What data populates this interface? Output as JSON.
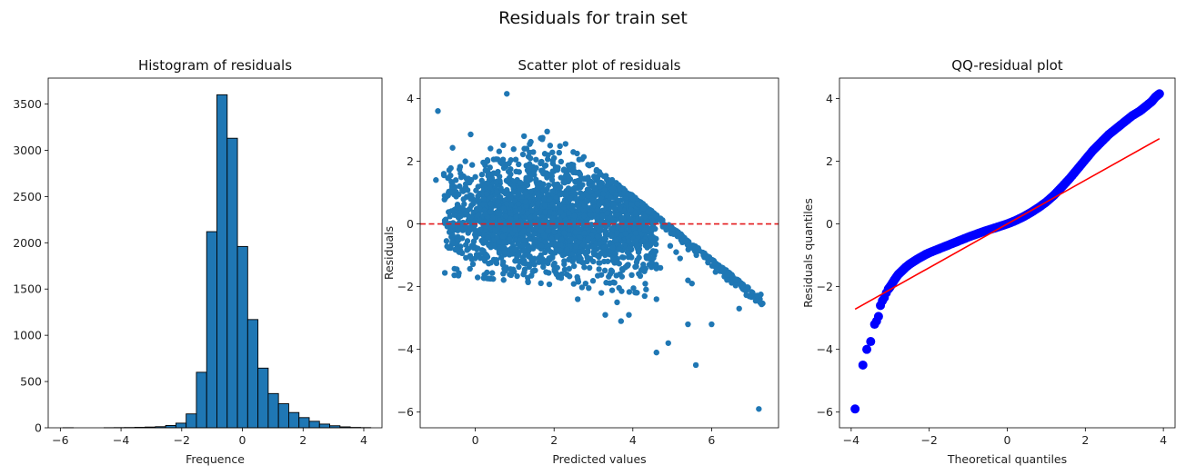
{
  "figure": {
    "suptitle": "Residuals for train set"
  },
  "chart_data": [
    {
      "type": "bar",
      "title": "Histogram of residuals",
      "xlabel": "Frequence",
      "ylabel": "",
      "xlim": [
        -6.4,
        4.6
      ],
      "ylim": [
        0,
        3780
      ],
      "xticks": [
        -6,
        -4,
        -2,
        0,
        2,
        4
      ],
      "yticks": [
        0,
        500,
        1000,
        1500,
        2000,
        2500,
        3000,
        3500
      ],
      "bin_width": 0.338,
      "bin_edges": [
        -5.91,
        -5.572,
        -5.234,
        -4.896,
        -4.558,
        -4.22,
        -3.882,
        -3.544,
        -3.206,
        -2.868,
        -2.53,
        -2.192,
        -1.854,
        -1.516,
        -1.178,
        -0.84,
        -0.502,
        -0.164,
        0.174,
        0.512,
        0.85,
        1.188,
        1.526,
        1.864,
        2.202,
        2.54,
        2.878,
        3.216,
        3.554,
        3.892,
        4.23
      ],
      "values": [
        1,
        0,
        0,
        0,
        1,
        2,
        3,
        5,
        8,
        12,
        25,
        50,
        150,
        600,
        2120,
        3600,
        3130,
        1960,
        1170,
        645,
        370,
        260,
        165,
        110,
        70,
        40,
        22,
        10,
        4,
        2
      ],
      "color": "#1f77b4",
      "edgecolor": "#000000"
    },
    {
      "type": "scatter",
      "title": "Scatter plot of residuals",
      "xlabel": "Predicted values",
      "ylabel": "Residuals",
      "xlim": [
        -1.4,
        7.7
      ],
      "ylim": [
        -6.5,
        4.65
      ],
      "xticks": [
        0,
        2,
        4,
        6
      ],
      "yticks": [
        -6,
        -4,
        -2,
        0,
        2,
        4
      ],
      "hline": {
        "y": 0,
        "color": "#e41a1c",
        "style": "dashed"
      },
      "color": "#1f77b4",
      "cloud": {
        "count": 2600,
        "x_range": [
          -0.9,
          7.3
        ],
        "upper_bound": "4.9 - x"
      },
      "outliers": [
        [
          -0.95,
          3.6
        ],
        [
          0.8,
          4.15
        ],
        [
          -1.0,
          1.4
        ],
        [
          -0.8,
          1.6
        ],
        [
          -0.6,
          1.0
        ],
        [
          -0.4,
          1.2
        ],
        [
          0.0,
          1.5
        ],
        [
          0.3,
          1.3
        ],
        [
          1.1,
          1.9
        ],
        [
          1.3,
          2.4
        ],
        [
          1.5,
          1.7
        ],
        [
          1.7,
          2.7
        ],
        [
          0.5,
          -0.2
        ],
        [
          0.7,
          -0.4
        ],
        [
          1.0,
          -0.8
        ],
        [
          1.5,
          -1.3
        ],
        [
          2.2,
          -1.6
        ],
        [
          2.8,
          -1.9
        ],
        [
          3.2,
          -2.2
        ],
        [
          3.6,
          -2.5
        ],
        [
          2.6,
          -2.4
        ],
        [
          3.3,
          -2.9
        ],
        [
          3.7,
          -3.1
        ],
        [
          3.9,
          -2.9
        ],
        [
          4.3,
          -2.3
        ],
        [
          4.6,
          -2.4
        ],
        [
          4.6,
          -4.1
        ],
        [
          4.9,
          -3.8
        ],
        [
          5.4,
          -3.2
        ],
        [
          5.6,
          -4.5
        ],
        [
          6.0,
          -3.2
        ],
        [
          6.7,
          -2.7
        ],
        [
          7.2,
          -5.9
        ],
        [
          7.25,
          -2.25
        ],
        [
          4.4,
          -1.1
        ],
        [
          4.7,
          -1.4
        ],
        [
          4.95,
          -0.7
        ],
        [
          5.1,
          -0.9
        ],
        [
          5.2,
          -1.1
        ],
        [
          5.6,
          -0.9
        ],
        [
          5.4,
          -1.8
        ],
        [
          5.5,
          -1.9
        ],
        [
          4.3,
          -0.2
        ],
        [
          4.5,
          0.1
        ],
        [
          3.6,
          0.3
        ],
        [
          2.9,
          -1.4
        ],
        [
          2.0,
          2.1
        ],
        [
          1.9,
          2.5
        ],
        [
          0.1,
          0.5
        ]
      ]
    },
    {
      "type": "scatter",
      "title": "QQ-residual plot",
      "xlabel": "Theoretical quantiles",
      "ylabel": "Residuals quantiles",
      "xlim": [
        -4.3,
        4.3
      ],
      "ylim": [
        -6.5,
        4.65
      ],
      "xticks": [
        -4,
        -2,
        0,
        2,
        4
      ],
      "yticks": [
        -6,
        -4,
        -2,
        0,
        2,
        4
      ],
      "color": "#0000ff",
      "points_theoretical": [
        -3.9,
        -3.7,
        -3.6,
        -3.5,
        -3.4,
        -3.35,
        -3.3,
        -3.25,
        -3.2,
        -3.15,
        -3.1,
        -3.05,
        -3.0,
        -2.9,
        -2.8,
        -2.7,
        -2.6,
        -2.5,
        -2.4,
        -2.3,
        -2.2,
        -2.1,
        -2.0,
        -1.8,
        -1.6,
        -1.4,
        -1.2,
        -1.0,
        -0.8,
        -0.6,
        -0.4,
        -0.2,
        0.0,
        0.2,
        0.4,
        0.6,
        0.8,
        1.0,
        1.2,
        1.4,
        1.6,
        1.8,
        2.0,
        2.2,
        2.4,
        2.6,
        2.8,
        3.0,
        3.2,
        3.4,
        3.5,
        3.6,
        3.7,
        3.8,
        3.9
      ],
      "points_sample": [
        -5.9,
        -4.5,
        -4.0,
        -3.75,
        -3.2,
        -3.1,
        -2.95,
        -2.6,
        -2.45,
        -2.35,
        -2.2,
        -2.08,
        -2.0,
        -1.8,
        -1.62,
        -1.5,
        -1.38,
        -1.28,
        -1.2,
        -1.12,
        -1.05,
        -0.98,
        -0.92,
        -0.82,
        -0.72,
        -0.62,
        -0.52,
        -0.42,
        -0.33,
        -0.24,
        -0.16,
        -0.08,
        0.0,
        0.1,
        0.22,
        0.36,
        0.52,
        0.7,
        0.92,
        1.18,
        1.45,
        1.75,
        2.05,
        2.35,
        2.6,
        2.85,
        3.05,
        3.25,
        3.45,
        3.6,
        3.7,
        3.8,
        3.9,
        4.05,
        4.15
      ],
      "reference_line": {
        "color": "#ff0000",
        "points": [
          [
            -3.9,
            -2.72
          ],
          [
            3.9,
            2.72
          ]
        ]
      }
    }
  ]
}
